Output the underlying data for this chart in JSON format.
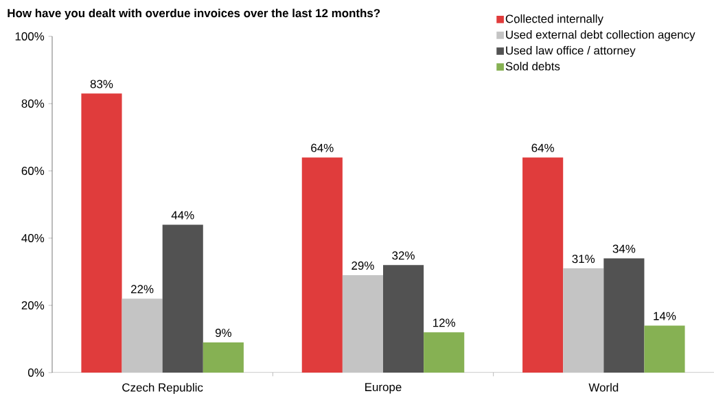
{
  "chart_data": {
    "type": "bar",
    "title": "How have you dealt with overdue invoices over the last 12 months?",
    "categories": [
      "Czech Republic",
      "Europe",
      "World"
    ],
    "series": [
      {
        "name": "Collected internally",
        "color": "#e03c3c",
        "values": [
          83,
          64,
          64
        ],
        "value_labels": [
          "83%",
          "64%",
          "64%"
        ]
      },
      {
        "name": "Used external debt collection agency",
        "color": "#c4c4c4",
        "values": [
          22,
          29,
          31
        ],
        "value_labels": [
          "22%",
          "29%",
          "31%"
        ]
      },
      {
        "name": "Used law office / attorney",
        "color": "#525252",
        "values": [
          44,
          32,
          34
        ],
        "value_labels": [
          "44%",
          "32%",
          "34%"
        ]
      },
      {
        "name": "Sold debts",
        "color": "#86b153",
        "values": [
          9,
          12,
          14
        ],
        "value_labels": [
          "9%",
          "12%",
          "14%"
        ]
      }
    ],
    "ylim": [
      0,
      100
    ],
    "yticks": [
      {
        "value": 0,
        "label": "0%"
      },
      {
        "value": 20,
        "label": "20%"
      },
      {
        "value": 40,
        "label": "40%"
      },
      {
        "value": 60,
        "label": "60%"
      },
      {
        "value": 80,
        "label": "80%"
      },
      {
        "value": 100,
        "label": "100%"
      }
    ],
    "legend": "top right"
  }
}
